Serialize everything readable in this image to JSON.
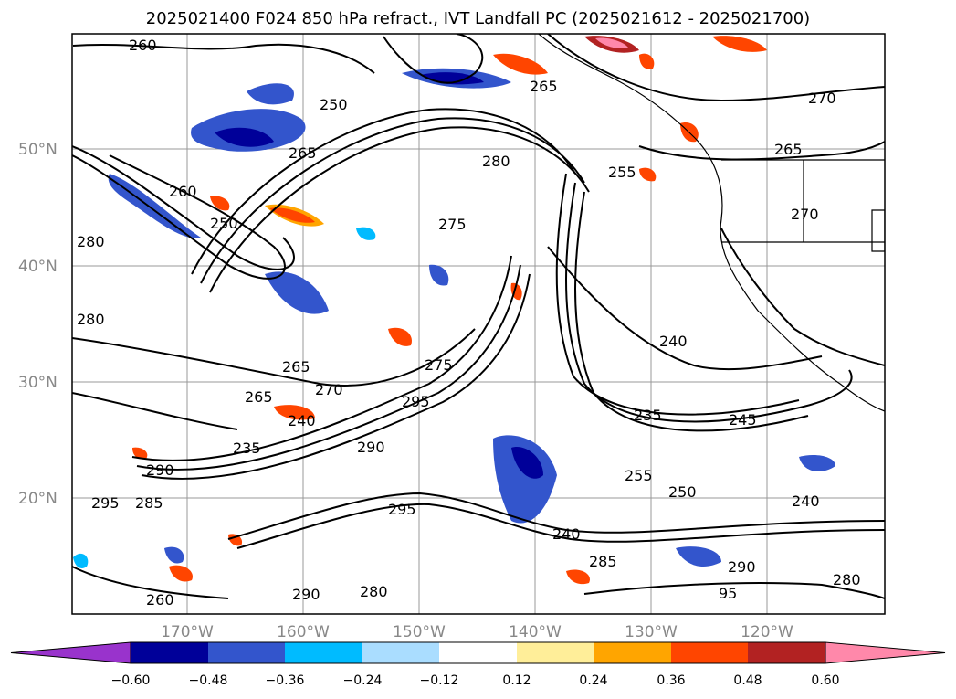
{
  "title": "2025021400 F024 850 hPa refract., IVT Landfall PC (2025021612 - 2025021700)",
  "map": {
    "lat_labels": [
      "50°N",
      "40°N",
      "30°N",
      "20°N"
    ],
    "lon_labels": [
      "170°W",
      "160°W",
      "150°W",
      "140°W",
      "130°W",
      "120°W"
    ],
    "contour_labels": [
      "260",
      "250",
      "265",
      "280",
      "255",
      "265",
      "270",
      "275",
      "265",
      "260",
      "280",
      "240",
      "270",
      "295",
      "290",
      "235",
      "240",
      "265",
      "270",
      "255",
      "275",
      "250",
      "240",
      "295",
      "285",
      "290",
      "95",
      "290",
      "280",
      "285",
      "280",
      "265",
      "260",
      "290",
      "295",
      "250",
      "240",
      "245",
      "235",
      "280"
    ]
  },
  "colorbar": {
    "ticks": [
      "−0.60",
      "−0.48",
      "−0.36",
      "−0.24",
      "−0.12",
      "0.12",
      "0.24",
      "0.36",
      "0.48",
      "0.60"
    ],
    "colors": [
      "#9933cc",
      "#000099",
      "#3355cc",
      "#00bbff",
      "#aaddff",
      "#ffffff",
      "#ffee99",
      "#ffa500",
      "#ff4500",
      "#b22222",
      "#ff88aa"
    ]
  }
}
